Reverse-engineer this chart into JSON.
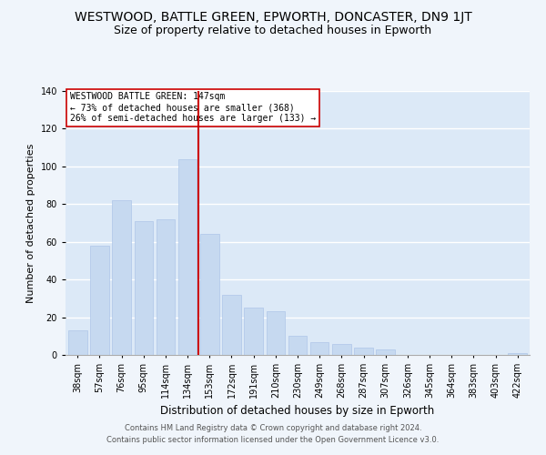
{
  "title": "WESTWOOD, BATTLE GREEN, EPWORTH, DONCASTER, DN9 1JT",
  "subtitle": "Size of property relative to detached houses in Epworth",
  "xlabel": "Distribution of detached houses by size in Epworth",
  "ylabel": "Number of detached properties",
  "categories": [
    "38sqm",
    "57sqm",
    "76sqm",
    "95sqm",
    "114sqm",
    "134sqm",
    "153sqm",
    "172sqm",
    "191sqm",
    "210sqm",
    "230sqm",
    "249sqm",
    "268sqm",
    "287sqm",
    "307sqm",
    "326sqm",
    "345sqm",
    "364sqm",
    "383sqm",
    "403sqm",
    "422sqm"
  ],
  "values": [
    13,
    58,
    82,
    71,
    72,
    104,
    64,
    32,
    25,
    23,
    10,
    7,
    6,
    4,
    3,
    0,
    0,
    0,
    0,
    0,
    1
  ],
  "bar_color": "#c6d9f0",
  "bar_edge_color": "#aec6e8",
  "property_line_x": 5.5,
  "property_line_color": "#cc0000",
  "annotation_title": "WESTWOOD BATTLE GREEN: 147sqm",
  "annotation_line1": "← 73% of detached houses are smaller (368)",
  "annotation_line2": "26% of semi-detached houses are larger (133) →",
  "annotation_box_color": "#ffffff",
  "annotation_box_edge_color": "#cc0000",
  "ylim": [
    0,
    140
  ],
  "yticks": [
    0,
    20,
    40,
    60,
    80,
    100,
    120,
    140
  ],
  "footer_line1": "Contains HM Land Registry data © Crown copyright and database right 2024.",
  "footer_line2": "Contains public sector information licensed under the Open Government Licence v3.0.",
  "background_color": "#f0f5fb",
  "plot_bg_color": "#dce9f7",
  "grid_color": "#ffffff",
  "title_fontsize": 10,
  "subtitle_fontsize": 9,
  "tick_fontsize": 7,
  "ylabel_fontsize": 8,
  "xlabel_fontsize": 8.5,
  "annotation_fontsize": 7,
  "footer_fontsize": 6
}
